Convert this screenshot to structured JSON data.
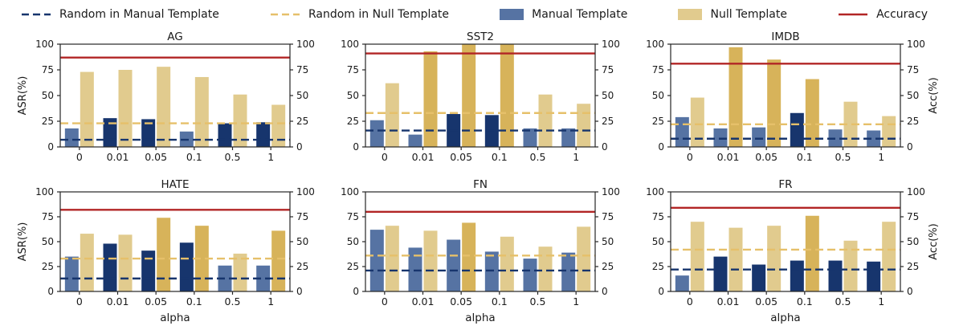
{
  "colors": {
    "manual_light": "#5673a3",
    "manual_dark": "#17356d",
    "null_light": "#e1cb8e",
    "null_dark": "#d7b35a",
    "accuracy": "#b22525",
    "random_manual": "#17356d",
    "random_null": "#e6c06a",
    "axis": "#262626",
    "text": "#1a1a1a"
  },
  "legend": {
    "items": [
      {
        "label": "Random in Manual Template",
        "swatch": "dashed-line"
      },
      {
        "label": "Random in Null Template",
        "swatch": "dashed-line"
      },
      {
        "label": "Manual Template",
        "swatch": "box"
      },
      {
        "label": "Null Template",
        "swatch": "box"
      },
      {
        "label": "Accuracy",
        "swatch": "line"
      }
    ]
  },
  "axes": {
    "ylabel_left": "ASR(%)",
    "ylabel_right": "Acc(%)",
    "xlabel": "alpha",
    "yticks": [
      "0",
      "25",
      "50",
      "75",
      "100"
    ],
    "ylim": [
      0,
      100
    ],
    "grid": false,
    "legend_position": "top"
  },
  "chart_data": [
    {
      "type": "bar",
      "title": "AG",
      "categories": [
        "0",
        "0.01",
        "0.05",
        "0.1",
        "0.5",
        "1"
      ],
      "series": [
        {
          "name": "Manual Template",
          "values": [
            18,
            28,
            27,
            15,
            23,
            24
          ],
          "shades": [
            "light",
            "dark",
            "dark",
            "light",
            "dark",
            "dark"
          ]
        },
        {
          "name": "Null Template",
          "values": [
            73,
            75,
            78,
            68,
            51,
            41
          ],
          "shades": [
            "light",
            "light",
            "light",
            "light",
            "light",
            "light"
          ]
        }
      ],
      "lines": {
        "accuracy": 87,
        "random_manual": 7,
        "random_null": 23
      }
    },
    {
      "type": "bar",
      "title": "SST2",
      "categories": [
        "0",
        "0.01",
        "0.05",
        "0.1",
        "0.5",
        "1"
      ],
      "series": [
        {
          "name": "Manual Template",
          "values": [
            26,
            12,
            32,
            31,
            18,
            18
          ],
          "shades": [
            "light",
            "light",
            "dark",
            "dark",
            "light",
            "light"
          ]
        },
        {
          "name": "Null Template",
          "values": [
            62,
            93,
            100,
            100,
            51,
            42
          ],
          "shades": [
            "light",
            "dark",
            "dark",
            "dark",
            "light",
            "light"
          ]
        }
      ],
      "lines": {
        "accuracy": 91,
        "random_manual": 16,
        "random_null": 33
      }
    },
    {
      "type": "bar",
      "title": "IMDB",
      "categories": [
        "0",
        "0.01",
        "0.05",
        "0.1",
        "0.5",
        "1"
      ],
      "series": [
        {
          "name": "Manual Template",
          "values": [
            29,
            18,
            19,
            33,
            17,
            16
          ],
          "shades": [
            "light",
            "light",
            "light",
            "dark",
            "light",
            "light"
          ]
        },
        {
          "name": "Null Template",
          "values": [
            48,
            97,
            85,
            66,
            44,
            30
          ],
          "shades": [
            "light",
            "dark",
            "dark",
            "dark",
            "light",
            "light"
          ]
        }
      ],
      "lines": {
        "accuracy": 81,
        "random_manual": 8,
        "random_null": 22
      }
    },
    {
      "type": "bar",
      "title": "HATE",
      "categories": [
        "0",
        "0.01",
        "0.05",
        "0.1",
        "0.5",
        "1"
      ],
      "series": [
        {
          "name": "Manual Template",
          "values": [
            35,
            48,
            41,
            49,
            26,
            26
          ],
          "shades": [
            "light",
            "dark",
            "dark",
            "dark",
            "light",
            "light"
          ]
        },
        {
          "name": "Null Template",
          "values": [
            58,
            57,
            74,
            66,
            38,
            61
          ],
          "shades": [
            "light",
            "light",
            "dark",
            "dark",
            "light",
            "dark"
          ]
        }
      ],
      "lines": {
        "accuracy": 82,
        "random_manual": 13,
        "random_null": 33
      }
    },
    {
      "type": "bar",
      "title": "FN",
      "categories": [
        "0",
        "0.01",
        "0.05",
        "0.1",
        "0.5",
        "1"
      ],
      "series": [
        {
          "name": "Manual Template",
          "values": [
            62,
            44,
            52,
            40,
            33,
            39
          ],
          "shades": [
            "light",
            "light",
            "light",
            "light",
            "light",
            "light"
          ]
        },
        {
          "name": "Null Template",
          "values": [
            66,
            61,
            69,
            55,
            45,
            65
          ],
          "shades": [
            "light",
            "light",
            "dark",
            "light",
            "light",
            "light"
          ]
        }
      ],
      "lines": {
        "accuracy": 80,
        "random_manual": 21,
        "random_null": 36
      }
    },
    {
      "type": "bar",
      "title": "FR",
      "categories": [
        "0",
        "0.01",
        "0.05",
        "0.1",
        "0.5",
        "1"
      ],
      "series": [
        {
          "name": "Manual Template",
          "values": [
            16,
            35,
            27,
            31,
            31,
            30
          ],
          "shades": [
            "light",
            "dark",
            "dark",
            "dark",
            "dark",
            "dark"
          ]
        },
        {
          "name": "Null Template",
          "values": [
            70,
            64,
            66,
            76,
            51,
            70
          ],
          "shades": [
            "light",
            "light",
            "light",
            "dark",
            "light",
            "light"
          ]
        }
      ],
      "lines": {
        "accuracy": 84,
        "random_manual": 22,
        "random_null": 42
      }
    }
  ]
}
